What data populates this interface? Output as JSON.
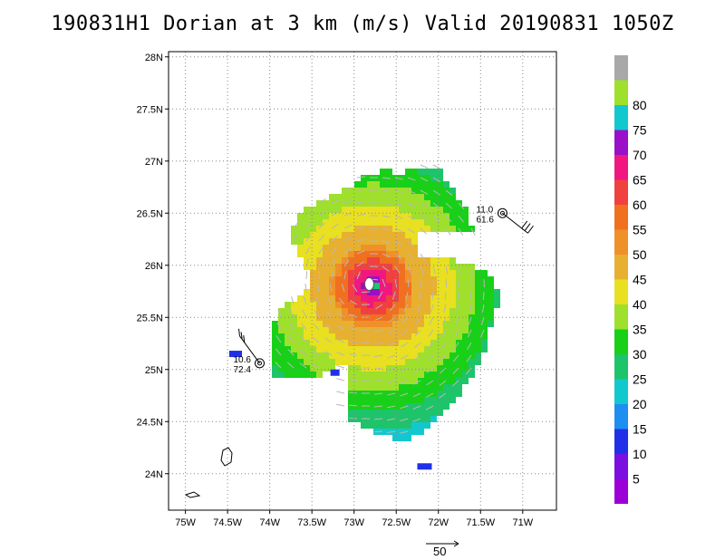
{
  "title": "190831H1 Dorian at 3 km (m/s) Valid 20190831  1050Z",
  "map": {
    "lon_range": [
      -75.2,
      -70.6
    ],
    "lat_range": [
      23.65,
      28.05
    ],
    "x_ticks": [
      {
        "value": -75.0,
        "label": "75W"
      },
      {
        "value": -74.5,
        "label": "74.5W"
      },
      {
        "value": -74.0,
        "label": "74W"
      },
      {
        "value": -73.5,
        "label": "73.5W"
      },
      {
        "value": -73.0,
        "label": "73W"
      },
      {
        "value": -72.5,
        "label": "72.5W"
      },
      {
        "value": -72.0,
        "label": "72W"
      },
      {
        "value": -71.5,
        "label": "71.5W"
      },
      {
        "value": -71.0,
        "label": "71W"
      }
    ],
    "y_ticks": [
      {
        "value": 24.0,
        "label": "24N"
      },
      {
        "value": 24.5,
        "label": "24.5N"
      },
      {
        "value": 25.0,
        "label": "25N"
      },
      {
        "value": 25.5,
        "label": "25.5N"
      },
      {
        "value": 26.0,
        "label": "26N"
      },
      {
        "value": 26.5,
        "label": "26.5N"
      },
      {
        "value": 27.0,
        "label": "27N"
      },
      {
        "value": 27.5,
        "label": "27.5N"
      },
      {
        "value": 28.0,
        "label": "28N"
      }
    ],
    "grid": true,
    "storm_center": {
      "lon": -72.82,
      "lat": 25.82
    },
    "observations": [
      {
        "lon": -71.24,
        "lat": 26.5,
        "top": "11.0",
        "bottom": "61.6",
        "barb_dir": "se"
      },
      {
        "lon": -74.12,
        "lat": 25.06,
        "top": "10.6",
        "bottom": "72.4",
        "barb_dir": "nw"
      }
    ]
  },
  "colorbar": {
    "levels": [
      {
        "label": "",
        "color": "#9b00d6"
      },
      {
        "label": "5",
        "color": "#7a0fe0"
      },
      {
        "label": "10",
        "color": "#2030e8"
      },
      {
        "label": "15",
        "color": "#1e8ef0"
      },
      {
        "label": "20",
        "color": "#12c8cf"
      },
      {
        "label": "25",
        "color": "#1ec46a"
      },
      {
        "label": "30",
        "color": "#18d018"
      },
      {
        "label": "35",
        "color": "#9ee02c"
      },
      {
        "label": "40",
        "color": "#e8e020"
      },
      {
        "label": "45",
        "color": "#e8b030"
      },
      {
        "label": "50",
        "color": "#f09028"
      },
      {
        "label": "55",
        "color": "#f07020"
      },
      {
        "label": "60",
        "color": "#f04040"
      },
      {
        "label": "65",
        "color": "#f01880"
      },
      {
        "label": "70",
        "color": "#9a10c8"
      },
      {
        "label": "75",
        "color": "#12c8cf"
      },
      {
        "label": "80",
        "color": "#9ee02c"
      },
      {
        "label": "",
        "color": "#a8a8a8"
      }
    ]
  },
  "scale_vector": {
    "label": "50"
  }
}
